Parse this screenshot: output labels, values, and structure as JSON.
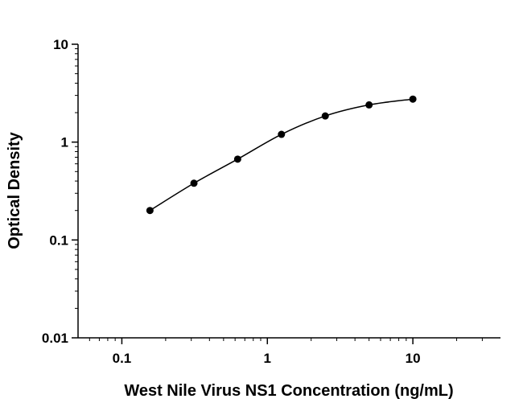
{
  "chart_data": {
    "type": "scatter",
    "title": "",
    "xlabel": "West Nile Virus NS1 Concentration (ng/mL)",
    "ylabel": "Optical Density",
    "x_scale": "log",
    "y_scale": "log",
    "xlim": [
      0.05,
      40
    ],
    "ylim": [
      0.01,
      10
    ],
    "x_ticks": [
      {
        "value": 0.1,
        "label": "0.1"
      },
      {
        "value": 1,
        "label": "1"
      },
      {
        "value": 10,
        "label": "10"
      }
    ],
    "y_ticks": [
      {
        "value": 0.01,
        "label": "0.01"
      },
      {
        "value": 0.1,
        "label": "0.1"
      },
      {
        "value": 1,
        "label": "1"
      },
      {
        "value": 10,
        "label": "10"
      }
    ],
    "grid": false,
    "legend": "none",
    "series": [
      {
        "x": [
          0.156,
          0.313,
          0.625,
          1.25,
          2.5,
          5,
          10
        ],
        "y": [
          0.2,
          0.38,
          0.67,
          1.2,
          1.85,
          2.4,
          2.75
        ],
        "fit_curve": true,
        "color": "#000000"
      }
    ]
  }
}
